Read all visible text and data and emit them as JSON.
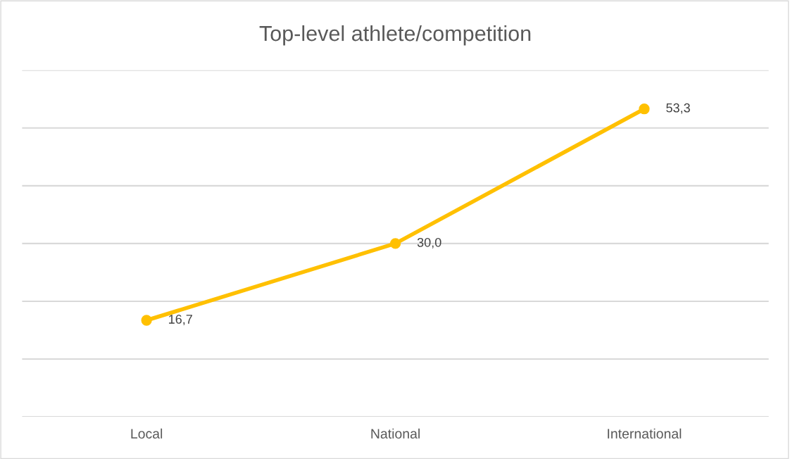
{
  "chart_data": {
    "type": "line",
    "title": "Top-level athlete/competition",
    "categories": [
      "Local",
      "National",
      "International"
    ],
    "series": [
      {
        "color": "#ffc000",
        "values": [
          16.7,
          30.0,
          53.3
        ],
        "value_labels": [
          "16,7",
          "30,0",
          "53,3"
        ]
      }
    ],
    "ylim": [
      0,
      60
    ],
    "yticks": [
      {
        "value": 0,
        "label": null
      },
      {
        "value": 10,
        "label": null
      },
      {
        "value": 20,
        "label": null
      },
      {
        "value": 30,
        "label": null
      },
      {
        "value": 40,
        "label": null
      },
      {
        "value": 50,
        "label": null
      },
      {
        "value": 60,
        "label": null
      }
    ],
    "grid": "y",
    "tick_labels": "x",
    "marker": "circle",
    "line_style": "solid"
  }
}
